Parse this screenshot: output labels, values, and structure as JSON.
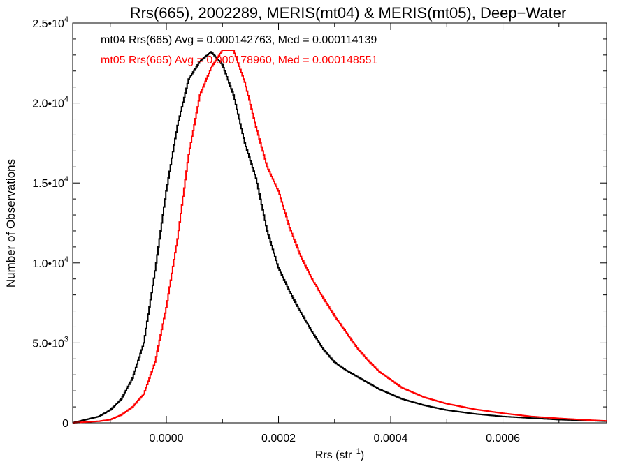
{
  "chart_data": {
    "type": "line",
    "title": "Rrs(665), 2002289, MERIS(mt04) & MERIS(mt05), Deep−Water",
    "xlabel_base": "Rrs (str",
    "xlabel_exp": "−1",
    "xlabel_close": ")",
    "ylabel": "Number of Observations",
    "xlim": [
      -0.000167,
      0.000785
    ],
    "ylim": [
      0,
      25000
    ],
    "x_ticks": [
      {
        "value": 0.0,
        "label": "0.0000"
      },
      {
        "value": 0.0002,
        "label": "0.0002"
      },
      {
        "value": 0.0004,
        "label": "0.0004"
      },
      {
        "value": 0.0006,
        "label": "0.0006"
      }
    ],
    "y_ticks": [
      {
        "value": 0,
        "base": "0",
        "exp": ""
      },
      {
        "value": 5000,
        "base": "5.0•10",
        "exp": "3"
      },
      {
        "value": 10000,
        "base": "1.0•10",
        "exp": "4"
      },
      {
        "value": 15000,
        "base": "1.5•10",
        "exp": "4"
      },
      {
        "value": 20000,
        "base": "2.0•10",
        "exp": "4"
      },
      {
        "value": 25000,
        "base": "2.5•10",
        "exp": "4"
      }
    ],
    "series": [
      {
        "name": "mt04",
        "color": "#000000",
        "annotation": "mt04 Rrs(665) Avg = 0.000142763, Med = 0.000114139",
        "x": [
          -0.000167,
          -0.00012,
          -0.0001,
          -8e-05,
          -6e-05,
          -4e-05,
          -2e-05,
          0.0,
          2e-05,
          4e-05,
          6e-05,
          8e-05,
          0.0001,
          0.00012,
          0.00014,
          0.00016,
          0.00018,
          0.0002,
          0.00022,
          0.00024,
          0.00026,
          0.00028,
          0.0003,
          0.00032,
          0.00034,
          0.00036,
          0.00038,
          0.0004,
          0.00042,
          0.00044,
          0.00046,
          0.0005,
          0.00055,
          0.0006,
          0.00065,
          0.0007,
          0.00075,
          0.000785
        ],
        "y": [
          0,
          400,
          800,
          1500,
          2800,
          5000,
          9500,
          14500,
          18600,
          21500,
          22600,
          23200,
          22400,
          20500,
          17500,
          15300,
          12000,
          9700,
          8200,
          6900,
          5700,
          4600,
          3800,
          3300,
          2900,
          2500,
          2100,
          1800,
          1500,
          1300,
          1100,
          800,
          560,
          400,
          300,
          200,
          150,
          100
        ]
      },
      {
        "name": "mt05",
        "color": "#ff0000",
        "annotation": "mt05 Rrs(665) Avg = 0.000178960, Med = 0.000148551",
        "x": [
          -0.000167,
          -0.00012,
          -0.0001,
          -8e-05,
          -6e-05,
          -4e-05,
          -2e-05,
          0.0,
          2e-05,
          4e-05,
          6e-05,
          8e-05,
          0.0001,
          0.00012,
          0.00014,
          0.00016,
          0.00018,
          0.0002,
          0.00022,
          0.00024,
          0.00026,
          0.00028,
          0.0003,
          0.00032,
          0.00034,
          0.00036,
          0.00038,
          0.0004,
          0.00042,
          0.00044,
          0.00046,
          0.0005,
          0.00055,
          0.0006,
          0.00065,
          0.0007,
          0.00075,
          0.000785
        ],
        "y": [
          0,
          100,
          200,
          500,
          1000,
          1800,
          3800,
          7200,
          11500,
          16800,
          20500,
          22200,
          23300,
          23300,
          21300,
          18500,
          16000,
          14500,
          12200,
          10400,
          9000,
          7800,
          6700,
          5700,
          4700,
          3900,
          3200,
          2700,
          2200,
          1900,
          1600,
          1200,
          850,
          600,
          400,
          280,
          180,
          120
        ]
      }
    ],
    "grid": false,
    "legend": "top-left"
  }
}
